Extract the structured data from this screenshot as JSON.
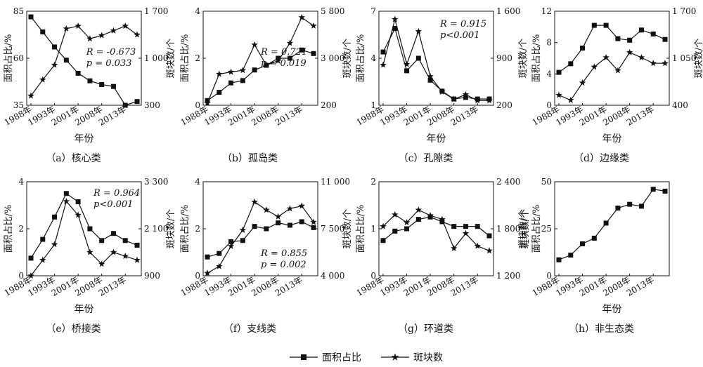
{
  "legend": {
    "area_label": "面积占比",
    "patch_label": "斑块数"
  },
  "chart_data": [
    {
      "id": "a",
      "caption": "（a）核心类",
      "type": "line",
      "xlabel": "年份",
      "ylabel_left": "面积占比/%",
      "ylabel_right": "斑块数/个",
      "x_ticks": [
        "1988年",
        "1993年",
        "2001年",
        "2008年",
        "2013年"
      ],
      "ylim_left": [
        35,
        85
      ],
      "yticks_left": [
        35,
        60,
        85
      ],
      "ylim_right": [
        300,
        1700
      ],
      "yticks_right": [
        "300",
        "1 000",
        "1 700"
      ],
      "area": [
        82,
        74,
        66,
        59,
        52,
        48,
        46,
        45,
        35,
        37
      ],
      "patches": [
        440,
        680,
        900,
        1440,
        1480,
        1290,
        1340,
        1410,
        1480,
        1350
      ],
      "annotation": [
        "R = -0.673",
        "p = 0.033"
      ]
    },
    {
      "id": "b",
      "caption": "（b）孤岛类",
      "type": "line",
      "xlabel": "",
      "ylabel_left": "面积占比/%",
      "ylabel_right": "斑块数/个",
      "x_ticks": [
        "1988年",
        "1993年",
        "2001年",
        "2008年",
        "2013年"
      ],
      "ylim_left": [
        0,
        4
      ],
      "yticks_left": [
        0,
        2,
        4
      ],
      "ylim_right": [
        200,
        5800
      ],
      "yticks_right": [
        "200",
        "3 000",
        "5 800"
      ],
      "area": [
        0.2,
        0.55,
        0.95,
        1.05,
        1.5,
        1.7,
        2.0,
        2.0,
        2.35,
        2.2
      ],
      "patches": [
        330,
        2060,
        2180,
        2280,
        3800,
        2590,
        2850,
        3900,
        5430,
        4930
      ],
      "annotation": [
        "R = 0.721",
        "p = 0.019"
      ]
    },
    {
      "id": "c",
      "caption": "（c）孔隙类",
      "type": "line",
      "xlabel": "年份",
      "ylabel_left": "面积占比/%",
      "ylabel_right": "斑块数/个",
      "x_ticks": [
        "1988年",
        "1993年",
        "2001年",
        "2008年",
        "2013年"
      ],
      "ylim_left": [
        1,
        7
      ],
      "yticks_left": [
        1,
        4,
        7
      ],
      "ylim_right": [
        200,
        1600
      ],
      "yticks_right": [
        "200",
        "900",
        "1 600"
      ],
      "area": [
        4.4,
        5.9,
        3.2,
        4.0,
        2.6,
        1.9,
        1.4,
        1.5,
        1.4,
        1.4
      ],
      "patches": [
        800,
        1480,
        810,
        1300,
        630,
        400,
        290,
        360,
        270,
        270
      ],
      "annotation": [
        "R = 0.915",
        "p<0.001"
      ]
    },
    {
      "id": "d",
      "caption": "（d）边缘类",
      "type": "line",
      "xlabel": "年份",
      "ylabel_left": "面积占比/%",
      "ylabel_right": "斑块数/个",
      "x_ticks": [
        "1988年",
        "1993年",
        "2001年",
        "2008年",
        "2013年"
      ],
      "ylim_left": [
        0,
        12
      ],
      "yticks_left": [
        0,
        4,
        8,
        12
      ],
      "ylim_right": [
        400,
        1700
      ],
      "yticks_right": [
        "400",
        "1 050",
        "1 700"
      ],
      "area": [
        4.2,
        5.3,
        7.3,
        10.2,
        10.2,
        8.5,
        8.3,
        9.6,
        9.1,
        8.4
      ],
      "patches": [
        540,
        470,
        710,
        930,
        1060,
        880,
        1130,
        1060,
        980,
        980
      ],
      "annotation": []
    },
    {
      "id": "e",
      "caption": "（e）桥接类",
      "type": "line",
      "xlabel": "年份",
      "ylabel_left": "面积占比/%",
      "ylabel_right": "斑块数/个",
      "x_ticks": [
        "1988年",
        "1993年",
        "2001年",
        "2008年",
        "2013年"
      ],
      "ylim_left": [
        0,
        4
      ],
      "yticks_left": [
        0,
        2,
        4
      ],
      "ylim_right": [
        900,
        3300
      ],
      "yticks_right": [
        "900",
        "2 100",
        "3 300"
      ],
      "area": [
        0.75,
        1.55,
        2.5,
        3.5,
        3.15,
        2.0,
        1.5,
        1.8,
        1.5,
        1.3
      ],
      "patches": [
        900,
        1300,
        1700,
        2800,
        2450,
        1500,
        1200,
        1500,
        1400,
        1300
      ],
      "annotation": [
        "R = 0.964",
        "p<0.001"
      ]
    },
    {
      "id": "f",
      "caption": "（f）支线类",
      "type": "line",
      "xlabel": "",
      "ylabel_left": "面积占比/%",
      "ylabel_right": "斑块数/个",
      "x_ticks": [
        "1988年",
        "1993年",
        "2001年",
        "2008年",
        "2013年"
      ],
      "ylim_left": [
        0,
        4
      ],
      "yticks_left": [
        0,
        2,
        4
      ],
      "ylim_right": [
        4000,
        11000
      ],
      "yticks_right": [
        "4 000",
        "7 500",
        "11 000"
      ],
      "area": [
        0.8,
        0.95,
        1.45,
        1.5,
        2.1,
        2.0,
        2.25,
        2.15,
        2.3,
        2.05
      ],
      "patches": [
        4200,
        4700,
        6200,
        7400,
        9500,
        8900,
        8400,
        9000,
        9200,
        8000
      ],
      "annotation": [
        "R = 0.855",
        "p = 0.002"
      ]
    },
    {
      "id": "g",
      "caption": "（g）环道类",
      "type": "line",
      "xlabel": "",
      "ylabel_left": "面积占比/%",
      "ylabel_right": "斑块数/个",
      "x_ticks": [
        "1988年",
        "1993年",
        "2001年",
        "2008年",
        "2013年"
      ],
      "ylim_left": [
        0,
        2
      ],
      "yticks_left": [
        0,
        1,
        2
      ],
      "ylim_right": [
        1200,
        2400
      ],
      "yticks_right": [
        "1 200",
        "1 800",
        "2 400"
      ],
      "area": [
        0.75,
        0.95,
        1.0,
        1.2,
        1.25,
        1.15,
        1.05,
        1.05,
        1.05,
        0.85
      ],
      "patches": [
        1830,
        1980,
        1880,
        2040,
        1970,
        1920,
        1550,
        1740,
        1580,
        1520
      ],
      "annotation": []
    },
    {
      "id": "h",
      "caption": "（h）非生态类",
      "type": "line",
      "xlabel": "年份",
      "ylabel_left": "斑块数/个\n面积占比/%",
      "ylabel_right": "",
      "x_ticks": [
        "1988年",
        "1993年",
        "2001年",
        "2008年",
        "2013年"
      ],
      "ylim_left": [
        0,
        50
      ],
      "yticks_left": [
        0,
        25,
        50
      ],
      "ylim_right": null,
      "yticks_right": [],
      "area": [
        8.5,
        11,
        17,
        20,
        28,
        36,
        38,
        37,
        46,
        45
      ],
      "patches": [],
      "annotation": []
    }
  ]
}
